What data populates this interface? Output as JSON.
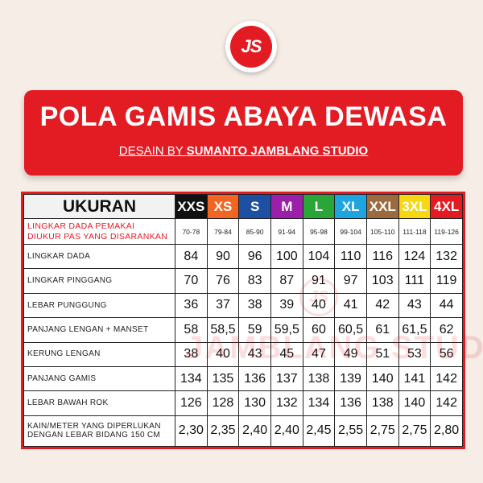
{
  "logo": "JS",
  "banner": {
    "title": "POLA GAMIS ABAYA DEWASA",
    "subtitle_prefix": "DESAIN BY ",
    "subtitle_bold": "SUMANTO JAMBLANG STUDIO"
  },
  "watermark": {
    "logo": "JS",
    "text": "JAMBLANG STUDIO"
  },
  "table": {
    "header_label": "UKURAN",
    "sizes": [
      {
        "name": "XXS",
        "bg": "#111111",
        "fg": "#ffffff"
      },
      {
        "name": "XS",
        "bg": "#f26522",
        "fg": "#ffffff"
      },
      {
        "name": "S",
        "bg": "#1d4fa3",
        "fg": "#ffffff"
      },
      {
        "name": "M",
        "bg": "#9b1fa8",
        "fg": "#ffffff"
      },
      {
        "name": "L",
        "bg": "#2aa537",
        "fg": "#ffffff"
      },
      {
        "name": "XL",
        "bg": "#1ea5e0",
        "fg": "#ffffff"
      },
      {
        "name": "XXL",
        "bg": "#9c6a3f",
        "fg": "#ffffff"
      },
      {
        "name": "3XL",
        "bg": "#f5d712",
        "fg": "#ffffff"
      },
      {
        "name": "4XL",
        "bg": "#e31b23",
        "fg": "#ffffff"
      }
    ],
    "range_row": {
      "label_line1": "LINGKAR DADA PEMAKAI",
      "label_line2": "DIUKUR PAS YANG DISARANKAN",
      "values": [
        "70-78",
        "79-84",
        "85-90",
        "91-94",
        "95-98",
        "99-104",
        "105-110",
        "111-118",
        "119-126"
      ]
    },
    "rows": [
      {
        "label": "LINGKAR DADA",
        "values": [
          "84",
          "90",
          "96",
          "100",
          "104",
          "110",
          "116",
          "124",
          "132"
        ]
      },
      {
        "label": "LINGKAR PINGGANG",
        "values": [
          "70",
          "76",
          "83",
          "87",
          "91",
          "97",
          "103",
          "111",
          "119"
        ]
      },
      {
        "label": "LEBAR PUNGGUNG",
        "values": [
          "36",
          "37",
          "38",
          "39",
          "40",
          "41",
          "42",
          "43",
          "44"
        ]
      },
      {
        "label": "PANJANG LENGAN + MANSET",
        "values": [
          "58",
          "58,5",
          "59",
          "59,5",
          "60",
          "60,5",
          "61",
          "61,5",
          "62"
        ]
      },
      {
        "label": "KERUNG LENGAN",
        "values": [
          "38",
          "40",
          "43",
          "45",
          "47",
          "49",
          "51",
          "53",
          "56"
        ]
      },
      {
        "label": "PANJANG GAMIS",
        "values": [
          "134",
          "135",
          "136",
          "137",
          "138",
          "139",
          "140",
          "141",
          "142"
        ]
      },
      {
        "label": "LEBAR BAWAH ROK",
        "values": [
          "126",
          "128",
          "130",
          "132",
          "134",
          "136",
          "138",
          "140",
          "142"
        ]
      }
    ],
    "fabric_row": {
      "label_line1": "KAIN/METER YANG DIPERLUKAN",
      "label_line2": "DENGAN LEBAR BIDANG 150 CM",
      "values": [
        "2,30",
        "2,35",
        "2,40",
        "2,40",
        "2,45",
        "2,55",
        "2,75",
        "2,75",
        "2,80"
      ]
    }
  }
}
